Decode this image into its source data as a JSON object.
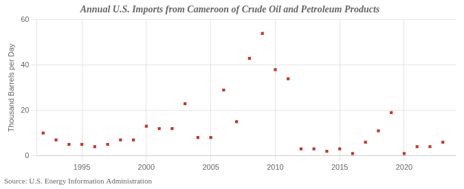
{
  "chart_data": {
    "type": "scatter",
    "title": "Annual U.S. Imports from Cameroon of Crude Oil and Petroleum Products",
    "y_label": "Thousand Barrels per Day",
    "annotations": [
      "Source: U.S. Energy Information Administration"
    ],
    "x": [
      1992,
      1993,
      1994,
      1995,
      1996,
      1997,
      1998,
      1999,
      2000,
      2001,
      2002,
      2003,
      2004,
      2005,
      2006,
      2007,
      2008,
      2009,
      2010,
      2011,
      2012,
      2013,
      2014,
      2015,
      2016,
      2017,
      2018,
      2019,
      2020,
      2021,
      2022,
      2023
    ],
    "values": [
      10,
      7,
      5,
      5,
      4,
      5,
      7,
      7,
      13,
      12,
      12,
      23,
      8,
      8,
      29,
      15,
      43,
      54,
      38,
      34,
      3,
      3,
      2,
      3,
      1,
      6,
      11,
      19,
      1,
      4,
      4,
      6
    ],
    "color": "#c0392b",
    "marker": "square",
    "xlim": [
      1991.5,
      2024
    ],
    "xticks": [
      1995,
      2000,
      2005,
      2010,
      2015,
      2020
    ],
    "ylim": [
      0,
      60
    ],
    "yticks": [
      0,
      20,
      40,
      60
    ],
    "grid": true
  }
}
